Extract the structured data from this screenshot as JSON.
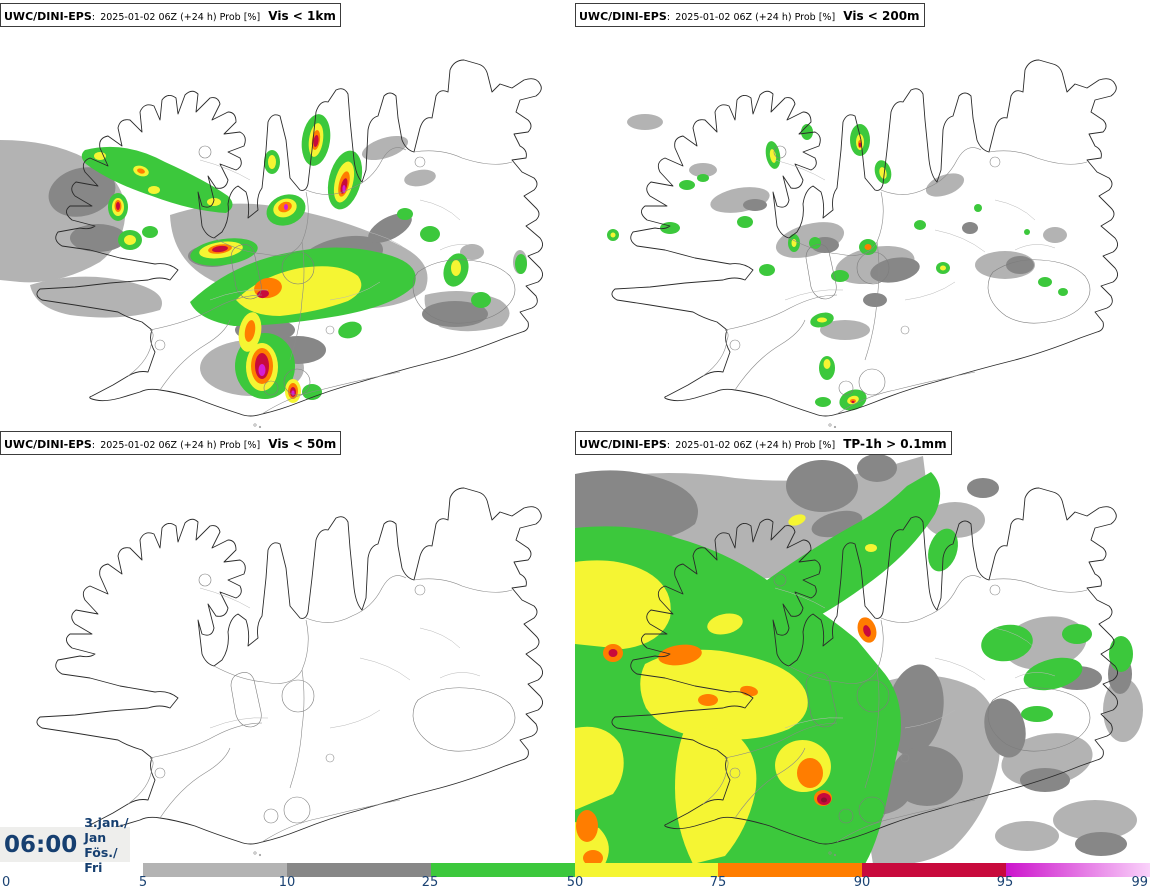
{
  "panels": [
    {
      "model": "UWC/DINI-EPS",
      "sep": ":",
      "run": "2025-01-02 06Z (+24 h) Prob [%]",
      "threshold": "Vis < 1km"
    },
    {
      "model": "UWC/DINI-EPS",
      "sep": ":",
      "run": "2025-01-02 06Z (+24 h) Prob [%]",
      "threshold": "Vis < 200m"
    },
    {
      "model": "UWC/DINI-EPS",
      "sep": ":",
      "run": "2025-01-02 06Z (+24 h) Prob [%]",
      "threshold": "Vis < 50m"
    },
    {
      "model": "UWC/DINI-EPS",
      "sep": ":",
      "run": "2025-01-02 06Z (+24 h) Prob [%]",
      "threshold": "TP-1h > 0.1mm"
    }
  ],
  "clock": {
    "time": "06:00",
    "date_line1": "3.jan./ Jan",
    "date_line2": "Fös./ Fri"
  },
  "colorbar": {
    "unit": "Prob [%]",
    "tick_labels": [
      "0",
      "5",
      "10",
      "25",
      "50",
      "75",
      "90",
      "95",
      "99"
    ],
    "segments": [
      {
        "from": 5,
        "to": 10,
        "color": "#b3b3b3"
      },
      {
        "from": 10,
        "to": 25,
        "color": "#878787"
      },
      {
        "from": 25,
        "to": 50,
        "color": "#3cc83c"
      },
      {
        "from": 50,
        "to": 75,
        "color": "#f5f533"
      },
      {
        "from": 75,
        "to": 90,
        "color": "#ff7d00"
      },
      {
        "from": 90,
        "to": 95,
        "color": "#c80a3c"
      },
      {
        "from": 95,
        "to": 99,
        "gradient": true,
        "from_color": "#cc14cc",
        "to_color": "#fad2fa"
      }
    ]
  },
  "map_palette": {
    "prob_5": "#b3b3b3",
    "prob_10": "#878787",
    "prob_25": "#3cc83c",
    "prob_50": "#f5f533",
    "prob_75": "#ff7d00",
    "prob_90": "#c80a3c",
    "prob_95": "#d41ed4"
  }
}
